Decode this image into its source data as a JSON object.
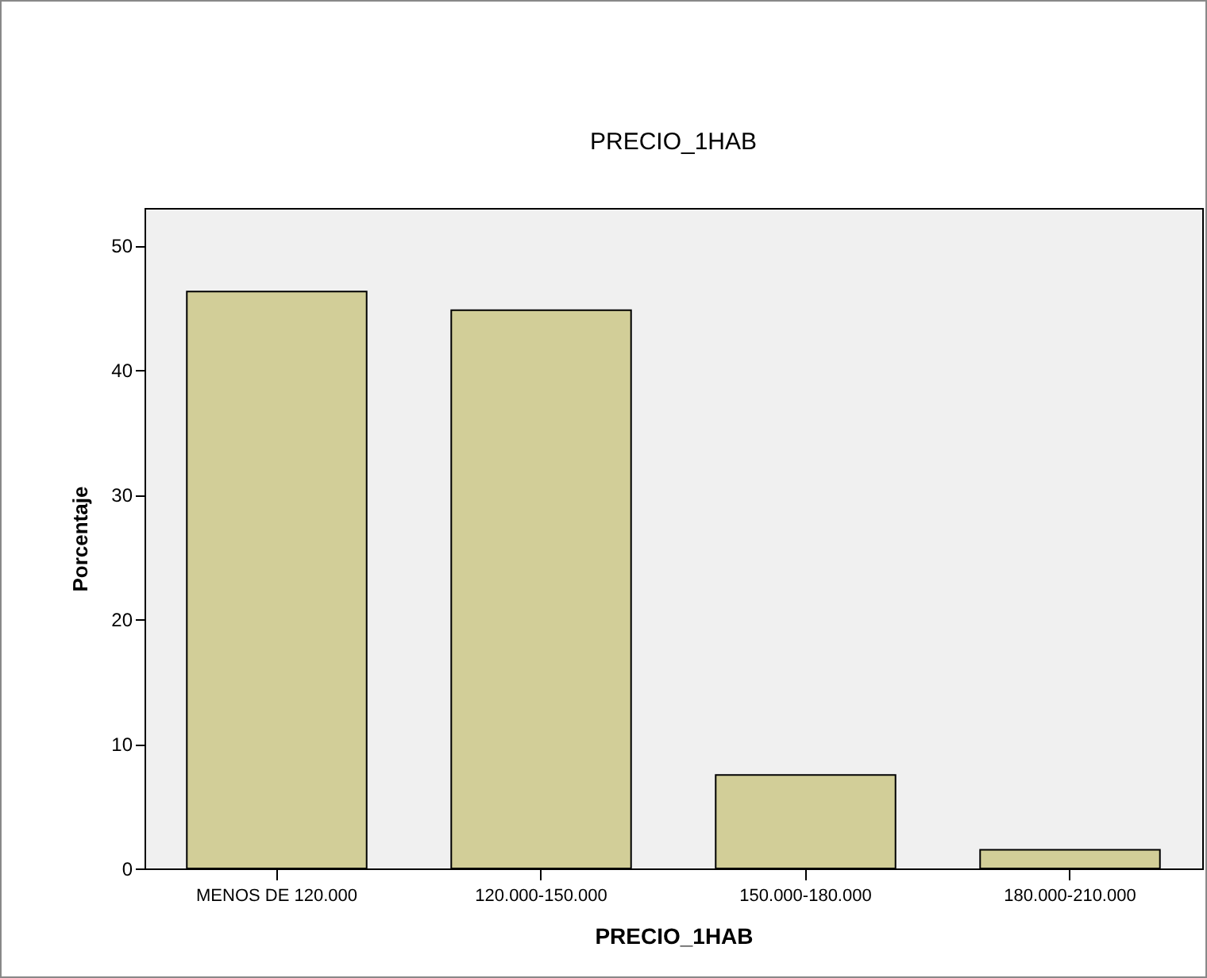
{
  "chart_data": {
    "type": "bar",
    "title": "PRECIO_1HAB",
    "xlabel": "PRECIO_1HAB",
    "ylabel": "Porcentaje",
    "categories": [
      "MENOS DE 120.000",
      "120.000-150.000",
      "150.000-180.000",
      "180.000-210.000"
    ],
    "values": [
      46.3,
      44.8,
      7.5,
      1.5
    ],
    "color": "#d2ce98",
    "ylim": [
      0,
      53
    ],
    "yticks": [
      0,
      10,
      20,
      30,
      40,
      50
    ],
    "grid": false
  }
}
